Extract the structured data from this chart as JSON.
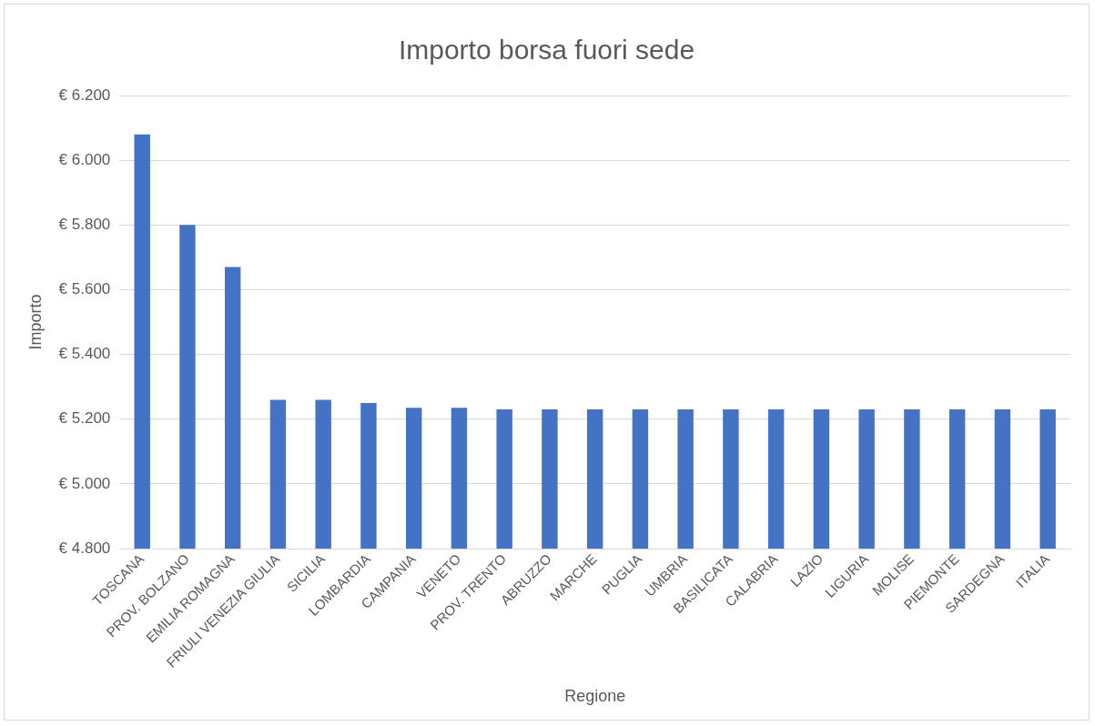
{
  "chart_data": {
    "type": "bar",
    "title": "Importo borsa fuori sede",
    "xlabel": "Regione",
    "ylabel": "Importo",
    "categories": [
      "TOSCANA",
      "PROV. BOLZANO",
      "EMILIA ROMAGNA",
      "FRIULI VENEZIA GIULIA",
      "SICILIA",
      "LOMBARDIA",
      "CAMPANIA",
      "VENETO",
      "PROV. TRENTO",
      "ABRUZZO",
      "MARCHE",
      "PUGLIA",
      "UMBRIA",
      "BASILICATA",
      "CALABRIA",
      "LAZIO",
      "LIGURIA",
      "MOLISE",
      "PIEMONTE",
      "SARDEGNA",
      "ITALIA"
    ],
    "values": [
      6080,
      5800,
      5670,
      5260,
      5260,
      5250,
      5235,
      5235,
      5230,
      5230,
      5230,
      5230,
      5230,
      5230,
      5230,
      5230,
      5230,
      5230,
      5230,
      5230,
      5230
    ],
    "color": "#4472c4",
    "ylim": [
      4800,
      6200
    ],
    "yticks": [
      {
        "value": 4800,
        "label": "€ 4.800"
      },
      {
        "value": 5000,
        "label": "€ 5.000"
      },
      {
        "value": 5200,
        "label": "€ 5.200"
      },
      {
        "value": 5400,
        "label": "€ 5.400"
      },
      {
        "value": 5600,
        "label": "€ 5.600"
      },
      {
        "value": 5800,
        "label": "€ 5.800"
      },
      {
        "value": 6000,
        "label": "€ 6.000"
      },
      {
        "value": 6200,
        "label": "€ 6.200"
      }
    ],
    "grid": "y"
  }
}
